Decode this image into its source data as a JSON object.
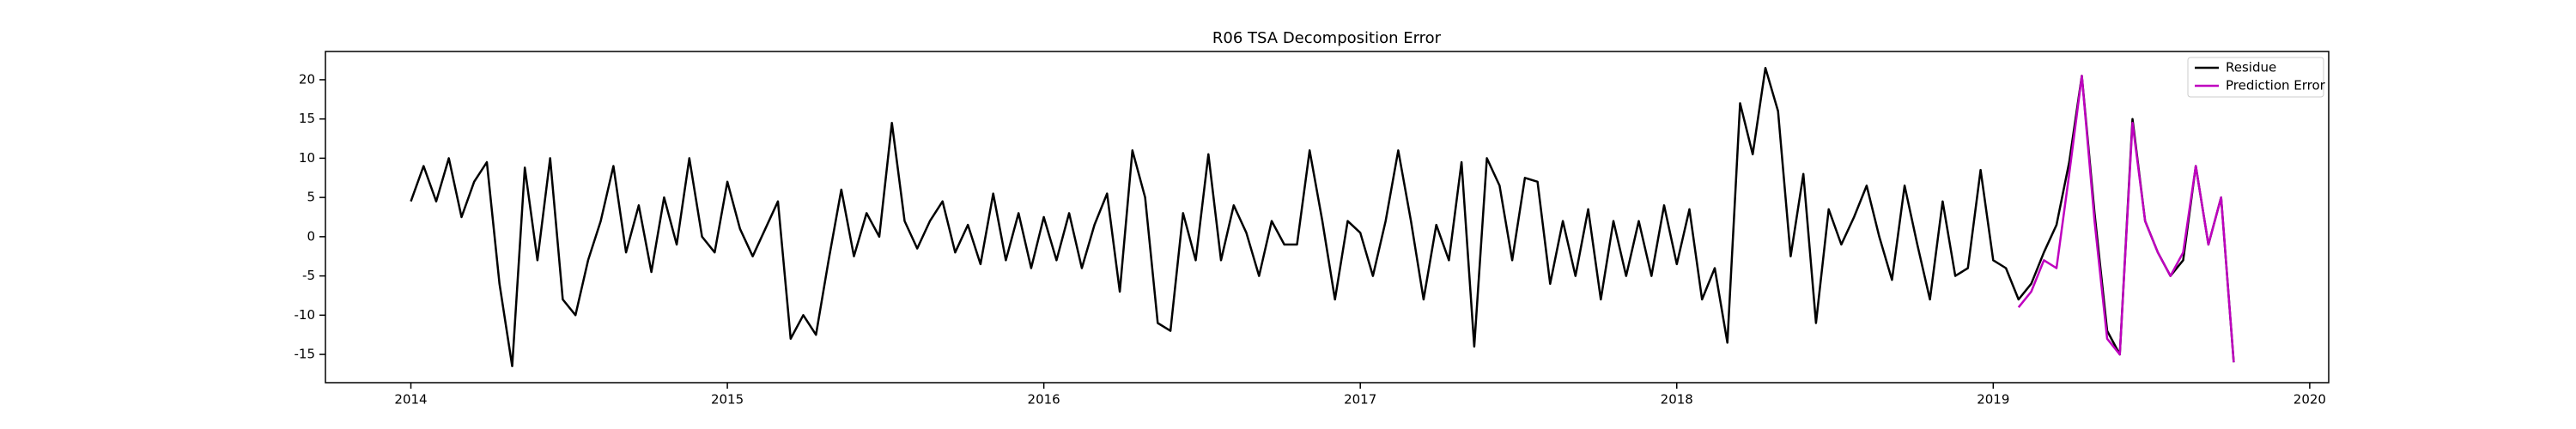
{
  "chart_data": {
    "type": "line",
    "title": "R06 TSA Decomposition Error",
    "x": [
      2014,
      2014.04,
      2014.08,
      2014.12,
      2014.16,
      2014.2,
      2014.24,
      2014.28,
      2014.32,
      2014.36,
      2014.4,
      2014.44,
      2014.48,
      2014.52,
      2014.56,
      2014.6,
      2014.64,
      2014.68,
      2014.72,
      2014.76,
      2014.8,
      2014.84,
      2014.88,
      2014.92,
      2014.96,
      2015,
      2015.04,
      2015.08,
      2015.12,
      2015.16,
      2015.2,
      2015.24,
      2015.28,
      2015.32,
      2015.36,
      2015.4,
      2015.44,
      2015.48,
      2015.52,
      2015.56,
      2015.6,
      2015.64,
      2015.68,
      2015.72,
      2015.76,
      2015.8,
      2015.84,
      2015.88,
      2015.92,
      2015.96,
      2016,
      2016.04,
      2016.08,
      2016.12,
      2016.16,
      2016.2,
      2016.24,
      2016.28,
      2016.32,
      2016.36,
      2016.4,
      2016.44,
      2016.48,
      2016.52,
      2016.56,
      2016.6,
      2016.64,
      2016.68,
      2016.72,
      2016.76,
      2016.8,
      2016.84,
      2016.88,
      2016.92,
      2016.96,
      2017,
      2017.04,
      2017.08,
      2017.12,
      2017.16,
      2017.2,
      2017.24,
      2017.28,
      2017.32,
      2017.36,
      2017.4,
      2017.44,
      2017.48,
      2017.52,
      2017.56,
      2017.6,
      2017.64,
      2017.68,
      2017.72,
      2017.76,
      2017.8,
      2017.84,
      2017.88,
      2017.92,
      2017.96,
      2018,
      2018.04,
      2018.08,
      2018.12,
      2018.16,
      2018.2,
      2018.24,
      2018.28,
      2018.32,
      2018.36,
      2018.4,
      2018.44,
      2018.48,
      2018.52,
      2018.56,
      2018.6,
      2018.64,
      2018.68,
      2018.72,
      2018.76,
      2018.8,
      2018.84,
      2018.88,
      2018.92,
      2018.96,
      2019,
      2019.04,
      2019.08,
      2019.12,
      2019.16,
      2019.2,
      2019.24,
      2019.28,
      2019.32,
      2019.36,
      2019.4,
      2019.44,
      2019.48,
      2019.52,
      2019.56,
      2019.6,
      2019.64,
      2019.68,
      2019.72,
      2019.76
    ],
    "series": [
      {
        "name": "Residue",
        "color": "#000000",
        "values": [
          4.5,
          9,
          4.5,
          10,
          2.5,
          7,
          9.5,
          -6,
          -16.5,
          8.8,
          -3,
          10,
          -8,
          -10,
          -3,
          2,
          9,
          -2,
          4,
          -4.5,
          5,
          -1,
          10,
          0,
          -2,
          7,
          1,
          -2.5,
          1,
          4.5,
          -13,
          -10,
          -12.5,
          -3,
          6,
          -2.5,
          3,
          0,
          14.5,
          2,
          -1.5,
          2,
          4.5,
          -2,
          1.5,
          -3.5,
          5.5,
          -3,
          3,
          -4,
          2.5,
          -3,
          3,
          -4,
          1.5,
          5.5,
          -7,
          11,
          5,
          -11,
          -12,
          3,
          -3,
          10.5,
          -3,
          4,
          0.5,
          -5,
          2,
          -1,
          -1,
          11,
          2,
          -8,
          2,
          0.5,
          -5,
          2,
          11,
          2,
          -8,
          1.5,
          -3,
          9.5,
          -14,
          10,
          6.5,
          -3,
          7.5,
          7,
          -6,
          2,
          -5,
          3.5,
          -8,
          2,
          -5,
          2,
          -5,
          4,
          -3.5,
          3.5,
          -8,
          -4,
          -13.5,
          17,
          10.5,
          21.5,
          16,
          -2.5,
          8,
          -11,
          3.5,
          -1,
          2.5,
          6.5,
          0,
          -5.5,
          6.5,
          -1,
          -8,
          4.5,
          -5,
          -4,
          8.5,
          -3,
          -4,
          -8,
          -6,
          -2,
          1.5,
          9.5,
          20.5,
          3,
          -12,
          -15,
          15,
          2,
          -2,
          -5,
          -3,
          9,
          -1,
          5,
          -16
        ]
      },
      {
        "name": "Prediction Error",
        "color": "#bf00bf",
        "values": [
          null,
          null,
          null,
          null,
          null,
          null,
          null,
          null,
          null,
          null,
          null,
          null,
          null,
          null,
          null,
          null,
          null,
          null,
          null,
          null,
          null,
          null,
          null,
          null,
          null,
          null,
          null,
          null,
          null,
          null,
          null,
          null,
          null,
          null,
          null,
          null,
          null,
          null,
          null,
          null,
          null,
          null,
          null,
          null,
          null,
          null,
          null,
          null,
          null,
          null,
          null,
          null,
          null,
          null,
          null,
          null,
          null,
          null,
          null,
          null,
          null,
          null,
          null,
          null,
          null,
          null,
          null,
          null,
          null,
          null,
          null,
          null,
          null,
          null,
          null,
          null,
          null,
          null,
          null,
          null,
          null,
          null,
          null,
          null,
          null,
          null,
          null,
          null,
          null,
          null,
          null,
          null,
          null,
          null,
          null,
          null,
          null,
          null,
          null,
          null,
          null,
          null,
          null,
          null,
          null,
          null,
          null,
          null,
          null,
          null,
          null,
          null,
          null,
          null,
          null,
          null,
          null,
          null,
          null,
          null,
          null,
          null,
          null,
          null,
          null,
          null,
          null,
          -9,
          -7,
          -3,
          -4,
          8,
          20.5,
          2,
          -13,
          -15,
          14.5,
          2,
          -2,
          -5,
          -2,
          9,
          -1,
          5,
          -16
        ]
      }
    ],
    "xlim": [
      2013.73,
      2020.06
    ],
    "xticks": [
      2014,
      2015,
      2016,
      2017,
      2018,
      2019,
      2020
    ],
    "ylim": [
      -18.6,
      23.6
    ],
    "yticks": [
      -15,
      -10,
      -5,
      0,
      5,
      10,
      15,
      20
    ],
    "legend": "upper right"
  }
}
